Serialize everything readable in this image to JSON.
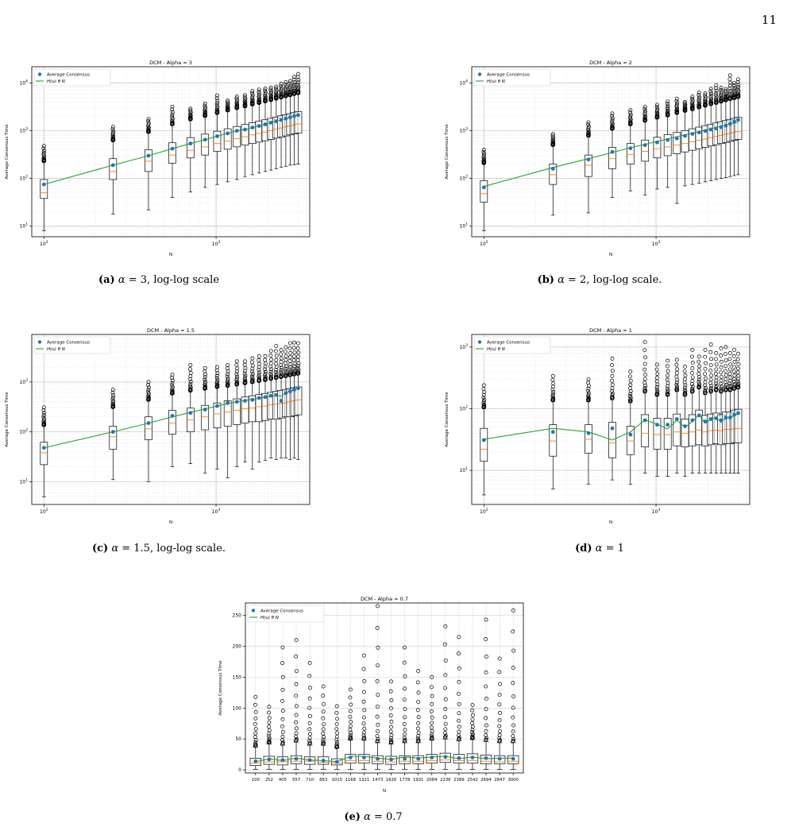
{
  "page_number": "11",
  "figures": [
    {
      "letter": "(a)",
      "symbol": "α",
      "rest": " = 3, log-log scale"
    },
    {
      "letter": "(b)",
      "symbol": "α",
      "rest": " = 2, log-log scale."
    },
    {
      "letter": "(c)",
      "symbol": "α",
      "rest": " = 1.5, log-log scale."
    },
    {
      "letter": "(d)",
      "symbol": "α",
      "rest": " = 1"
    },
    {
      "letter": "(e)",
      "symbol": "α",
      "rest": " = 0.7"
    }
  ],
  "chart_data": [
    {
      "type": "box",
      "title": "DCM - Alpha = 3",
      "xlabel": "N",
      "ylabel": "Average Consensus Time",
      "xscale": "log",
      "yscale": "log",
      "xlim": [
        85,
        3500
      ],
      "ylim": [
        6,
        22000
      ],
      "x_ticks": [
        {
          "value": 100,
          "base": "10",
          "exp": "2"
        },
        {
          "value": 1000,
          "base": "10",
          "exp": "3"
        }
      ],
      "y_ticks": [
        {
          "value": 10,
          "base": "10",
          "exp": "1"
        },
        {
          "value": 100,
          "base": "10",
          "exp": "2"
        },
        {
          "value": 1000,
          "base": "10",
          "exp": "3"
        },
        {
          "value": 10000,
          "base": "10",
          "exp": "4"
        }
      ],
      "legend": {
        "placement": "top-left",
        "entries": [
          "Average Consensus",
          "H(u) θ N"
        ]
      },
      "colors": {
        "mean": "#1f77b4",
        "fit": "#2ca02c",
        "median": "#ff7f0e"
      },
      "x": [
        100,
        252,
        405,
        557,
        710,
        863,
        1015,
        1168,
        1321,
        1473,
        1626,
        1778,
        1931,
        2084,
        2236,
        2389,
        2542,
        2694,
        2847,
        3000
      ],
      "mean": [
        75,
        190,
        300,
        420,
        540,
        650,
        770,
        880,
        1000,
        1060,
        1170,
        1260,
        1360,
        1480,
        1580,
        1690,
        1800,
        1920,
        2030,
        2140
      ],
      "fit": [
        75,
        190,
        300,
        420,
        540,
        650,
        770,
        880,
        1000,
        1060,
        1170,
        1260,
        1360,
        1480,
        1580,
        1690,
        1800,
        1920,
        2030,
        2140
      ],
      "median": [
        50,
        140,
        230,
        310,
        390,
        460,
        540,
        610,
        680,
        750,
        820,
        880,
        940,
        1010,
        1080,
        1140,
        1200,
        1260,
        1320,
        1390
      ],
      "q1": [
        38,
        95,
        140,
        210,
        270,
        310,
        370,
        410,
        460,
        500,
        540,
        580,
        620,
        660,
        700,
        740,
        780,
        820,
        860,
        900
      ],
      "q3": [
        95,
        260,
        400,
        560,
        720,
        850,
        980,
        1100,
        1230,
        1350,
        1470,
        1590,
        1700,
        1820,
        1940,
        2060,
        2170,
        2280,
        2400,
        2520
      ],
      "whisker_low": [
        8,
        18,
        22,
        40,
        52,
        65,
        75,
        85,
        95,
        110,
        120,
        130,
        140,
        150,
        160,
        170,
        180,
        190,
        195,
        200
      ],
      "whisker_high": [
        220,
        600,
        900,
        1300,
        1650,
        1950,
        2250,
        2550,
        2850,
        3100,
        3400,
        3650,
        3950,
        4200,
        4500,
        4750,
        5050,
        5300,
        5600,
        5850
      ],
      "outlier_max": [
        480,
        1200,
        1750,
        3200,
        2900,
        3700,
        5500,
        4300,
        5200,
        5600,
        6800,
        7300,
        7700,
        8000,
        8400,
        9700,
        10500,
        11000,
        13500,
        15500
      ]
    },
    {
      "type": "box",
      "title": "DCM - Alpha = 2",
      "xlabel": "N",
      "ylabel": "Average Consensus Time",
      "xscale": "log",
      "yscale": "log",
      "xlim": [
        85,
        3500
      ],
      "ylim": [
        6,
        22000
      ],
      "x_ticks": [
        {
          "value": 100,
          "base": "10",
          "exp": "2"
        },
        {
          "value": 1000,
          "base": "10",
          "exp": "3"
        }
      ],
      "y_ticks": [
        {
          "value": 10,
          "base": "10",
          "exp": "1"
        },
        {
          "value": 100,
          "base": "10",
          "exp": "2"
        },
        {
          "value": 1000,
          "base": "10",
          "exp": "3"
        },
        {
          "value": 10000,
          "base": "10",
          "exp": "4"
        }
      ],
      "legend": {
        "placement": "top-left",
        "entries": [
          "Average Consensus",
          "H(u) θ N"
        ]
      },
      "colors": {
        "mean": "#1f77b4",
        "fit": "#2ca02c",
        "median": "#ff7f0e"
      },
      "x": [
        100,
        252,
        405,
        557,
        710,
        863,
        1015,
        1168,
        1321,
        1473,
        1626,
        1778,
        1931,
        2084,
        2236,
        2389,
        2542,
        2694,
        2847,
        3000
      ],
      "mean": [
        65,
        160,
        250,
        360,
        430,
        500,
        570,
        640,
        690,
        780,
        860,
        920,
        990,
        1060,
        1120,
        1190,
        1280,
        1400,
        1560,
        1700
      ],
      "fit": [
        68,
        170,
        260,
        350,
        440,
        520,
        600,
        670,
        750,
        820,
        890,
        960,
        1030,
        1100,
        1170,
        1240,
        1310,
        1380,
        1450,
        1520
      ],
      "median": [
        48,
        120,
        190,
        260,
        320,
        370,
        420,
        460,
        500,
        540,
        590,
        630,
        670,
        720,
        760,
        800,
        840,
        880,
        920,
        960
      ],
      "q1": [
        32,
        75,
        110,
        160,
        200,
        230,
        270,
        300,
        330,
        360,
        390,
        420,
        450,
        480,
        510,
        540,
        570,
        600,
        630,
        660
      ],
      "q3": [
        90,
        200,
        310,
        450,
        540,
        640,
        730,
        830,
        920,
        1010,
        1100,
        1190,
        1280,
        1370,
        1460,
        1550,
        1640,
        1730,
        1820,
        1910
      ],
      "whisker_low": [
        8,
        17,
        19,
        40,
        55,
        45,
        60,
        65,
        30,
        70,
        75,
        80,
        85,
        90,
        95,
        100,
        105,
        110,
        115,
        120
      ],
      "whisker_high": [
        200,
        480,
        750,
        1050,
        1300,
        1550,
        1800,
        2000,
        2250,
        2500,
        2700,
        2950,
        3200,
        3450,
        3650,
        3900,
        4150,
        4400,
        4600,
        4850
      ],
      "outlier_max": [
        400,
        850,
        1500,
        2300,
        2700,
        3200,
        3500,
        4100,
        4700,
        4000,
        5200,
        6300,
        6100,
        7600,
        9000,
        8000,
        7500,
        14500,
        10000,
        12000
      ]
    },
    {
      "type": "box",
      "title": "DCM - Alpha = 1.5",
      "xlabel": "N",
      "ylabel": "Average Consensus Time",
      "xscale": "log",
      "yscale": "log",
      "xlim": [
        85,
        3500
      ],
      "ylim": [
        3.5,
        9000
      ],
      "x_ticks": [
        {
          "value": 100,
          "base": "10",
          "exp": "2"
        },
        {
          "value": 1000,
          "base": "10",
          "exp": "3"
        }
      ],
      "y_ticks": [
        {
          "value": 10,
          "base": "10",
          "exp": "1"
        },
        {
          "value": 100,
          "base": "10",
          "exp": "2"
        },
        {
          "value": 1000,
          "base": "10",
          "exp": "3"
        }
      ],
      "legend": {
        "placement": "top-left",
        "entries": [
          "Average Consensus",
          "H(u) θ N"
        ]
      },
      "colors": {
        "mean": "#1f77b4",
        "fit": "#2ca02c",
        "median": "#ff7f0e"
      },
      "x": [
        100,
        252,
        405,
        557,
        710,
        863,
        1015,
        1168,
        1321,
        1473,
        1626,
        1778,
        1931,
        2084,
        2236,
        2389,
        2542,
        2694,
        2847,
        3000
      ],
      "mean": [
        48,
        100,
        150,
        210,
        240,
        280,
        330,
        380,
        400,
        420,
        440,
        480,
        500,
        530,
        550,
        420,
        600,
        650,
        700,
        750
      ],
      "fit": [
        48,
        100,
        150,
        200,
        245,
        290,
        330,
        370,
        400,
        430,
        450,
        470,
        500,
        520,
        540,
        520,
        610,
        660,
        700,
        740
      ],
      "median": [
        38,
        80,
        115,
        150,
        175,
        200,
        230,
        250,
        270,
        290,
        300,
        320,
        330,
        350,
        360,
        370,
        380,
        400,
        420,
        440
      ],
      "q1": [
        22,
        45,
        70,
        90,
        100,
        110,
        120,
        130,
        140,
        150,
        160,
        160,
        170,
        180,
        180,
        190,
        200,
        200,
        210,
        220
      ],
      "q3": [
        62,
        130,
        200,
        270,
        300,
        340,
        380,
        420,
        460,
        500,
        530,
        560,
        590,
        620,
        650,
        680,
        710,
        740,
        770,
        800
      ],
      "whisker_low": [
        5,
        11,
        10,
        20,
        23,
        15,
        18,
        12,
        20,
        25,
        18,
        25,
        27,
        30,
        28,
        30,
        30,
        28,
        30,
        28
      ],
      "whisker_high": [
        130,
        300,
        420,
        560,
        640,
        700,
        760,
        800,
        850,
        900,
        950,
        1000,
        1050,
        1100,
        1150,
        1200,
        1250,
        1300,
        1350,
        1400
      ],
      "outlier_max": [
        310,
        700,
        1000,
        1400,
        2200,
        1900,
        2000,
        2200,
        2600,
        2600,
        3000,
        3300,
        3300,
        4200,
        5300,
        4400,
        5000,
        6000,
        6200,
        6000
      ]
    },
    {
      "type": "box",
      "title": "DCM - Alpha = 1",
      "xlabel": "N",
      "ylabel": "Average Consensus Time",
      "xscale": "log",
      "yscale": "log",
      "xlim": [
        85,
        3500
      ],
      "ylim": [
        2.8,
        1600
      ],
      "x_ticks": [
        {
          "value": 100,
          "base": "10",
          "exp": "2"
        },
        {
          "value": 1000,
          "base": "10",
          "exp": "3"
        }
      ],
      "y_ticks": [
        {
          "value": 10,
          "base": "10",
          "exp": "1"
        },
        {
          "value": 100,
          "base": "10",
          "exp": "2"
        },
        {
          "value": 1000,
          "base": "10",
          "exp": "3"
        }
      ],
      "legend": {
        "placement": "top-left",
        "entries": [
          "Average Consensus",
          "H(u) θ N"
        ]
      },
      "colors": {
        "mean": "#1f77b4",
        "fit": "#2ca02c",
        "median": "#ff7f0e"
      },
      "x": [
        100,
        252,
        405,
        557,
        710,
        863,
        1015,
        1168,
        1321,
        1473,
        1626,
        1778,
        1931,
        2084,
        2236,
        2389,
        2542,
        2694,
        2847,
        3000
      ],
      "mean": [
        31,
        42,
        40,
        48,
        38,
        65,
        55,
        55,
        68,
        52,
        65,
        78,
        62,
        68,
        70,
        65,
        72,
        72,
        80,
        85
      ],
      "fit": [
        32,
        48,
        42,
        31,
        42,
        66,
        56,
        47,
        65,
        50,
        62,
        80,
        58,
        68,
        72,
        60,
        72,
        70,
        78,
        82
      ],
      "median": [
        22,
        30,
        32,
        28,
        30,
        40,
        38,
        38,
        42,
        40,
        42,
        45,
        42,
        44,
        45,
        44,
        46,
        46,
        47,
        48
      ],
      "q1": [
        14,
        17,
        19,
        16,
        18,
        24,
        22,
        22,
        25,
        24,
        25,
        26,
        25,
        26,
        27,
        26,
        27,
        27,
        28,
        28
      ],
      "q3": [
        48,
        55,
        55,
        60,
        52,
        80,
        70,
        70,
        82,
        68,
        80,
        95,
        78,
        82,
        85,
        80,
        88,
        88,
        95,
        98
      ],
      "whisker_low": [
        4,
        5,
        6,
        7,
        6,
        9,
        8,
        8,
        9,
        8,
        9,
        9,
        9,
        9,
        9,
        9,
        9,
        9,
        9,
        9
      ],
      "whisker_high": [
        100,
        130,
        130,
        140,
        125,
        180,
        160,
        160,
        190,
        160,
        180,
        210,
        170,
        180,
        190,
        180,
        190,
        190,
        200,
        210
      ],
      "outlier_max": [
        240,
        340,
        300,
        650,
        400,
        1200,
        520,
        600,
        620,
        480,
        900,
        700,
        900,
        1100,
        800,
        950,
        1000,
        800,
        900,
        780
      ]
    },
    {
      "type": "box",
      "title": "DCM - Alpha = 0.7",
      "xlabel": "N",
      "ylabel": "Average Consensus Time",
      "xscale": "categorical",
      "yscale": "linear",
      "ylim": [
        -5,
        270
      ],
      "categories": [
        "100",
        "252",
        "405",
        "557",
        "710",
        "863",
        "1015",
        "1168",
        "1321",
        "1473",
        "1626",
        "1778",
        "1931",
        "2084",
        "2236",
        "2389",
        "2542",
        "2694",
        "2847",
        "3000"
      ],
      "y_ticks": [
        0,
        50,
        100,
        150,
        200,
        250
      ],
      "legend": {
        "placement": "top-left",
        "entries": [
          "Average Consensus",
          "H(u) θ N"
        ]
      },
      "colors": {
        "mean": "#1f77b4",
        "fit": "#2ca02c",
        "median": "#ff7f0e"
      },
      "mean": [
        14,
        17,
        16,
        18,
        16,
        15,
        13,
        20,
        20,
        18,
        17,
        18,
        18,
        20,
        21,
        19,
        20,
        19,
        18,
        18
      ],
      "fit": [
        13,
        18,
        15,
        19,
        16,
        15,
        13,
        22,
        22,
        19,
        17,
        21,
        19,
        21,
        22,
        18,
        21,
        18,
        19,
        19
      ],
      "median": [
        11,
        13,
        13,
        14,
        14,
        12,
        11,
        15,
        15,
        14,
        13,
        14,
        14,
        15,
        16,
        15,
        15,
        14,
        13,
        14
      ],
      "q1": [
        7,
        9,
        8,
        10,
        9,
        9,
        8,
        11,
        11,
        10,
        9,
        10,
        10,
        11,
        12,
        11,
        11,
        10,
        10,
        10
      ],
      "q3": [
        19,
        22,
        21,
        23,
        21,
        21,
        18,
        25,
        25,
        23,
        22,
        23,
        23,
        25,
        27,
        25,
        26,
        24,
        23,
        23
      ],
      "whisker_low": [
        1,
        1,
        1,
        1,
        1,
        1,
        1,
        1,
        1,
        1,
        1,
        1,
        1,
        1,
        1,
        1,
        1,
        1,
        1,
        1
      ],
      "whisker_high": [
        37,
        42,
        40,
        45,
        40,
        40,
        35,
        48,
        48,
        44,
        42,
        44,
        44,
        48,
        50,
        47,
        49,
        46,
        44,
        44
      ],
      "outlier_max": [
        118,
        102,
        198,
        210,
        173,
        135,
        103,
        130,
        185,
        265,
        143,
        198,
        160,
        150,
        232,
        215,
        105,
        243,
        180,
        258
      ]
    }
  ]
}
